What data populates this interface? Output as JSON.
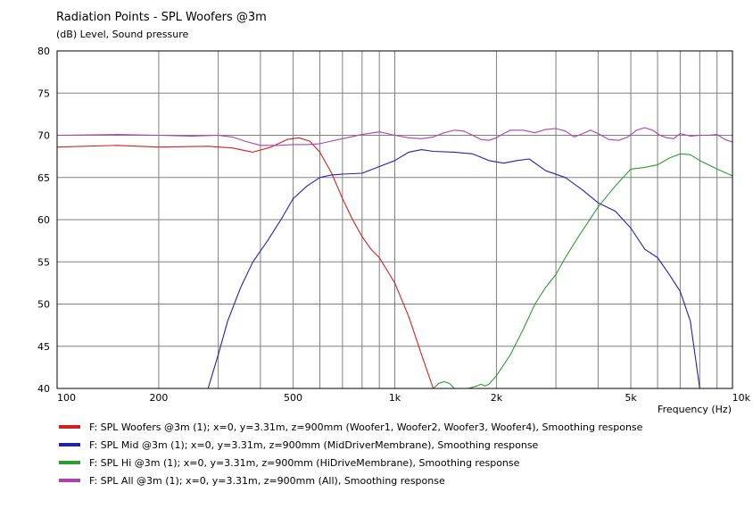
{
  "chart_data": {
    "type": "line",
    "title": "Radiation Points - SPL Woofers @3m",
    "ylabel": "(dB)  Level, Sound pressure",
    "xlabel": "Frequency  (Hz)",
    "xscale": "log",
    "xlim": [
      100,
      10000
    ],
    "ylim": [
      40,
      80
    ],
    "grid": true,
    "legend_position": "bottom",
    "y_ticks": [
      "80",
      "75",
      "70",
      "65",
      "60",
      "55",
      "50",
      "45",
      "40"
    ],
    "x_tick_labels": [
      {
        "value": 100,
        "label": "100"
      },
      {
        "value": 200,
        "label": "200"
      },
      {
        "value": 500,
        "label": "500"
      },
      {
        "value": 1000,
        "label": "1k"
      },
      {
        "value": 2000,
        "label": "2k"
      },
      {
        "value": 5000,
        "label": "5k"
      },
      {
        "value": 10000,
        "label": "10k"
      }
    ],
    "series": [
      {
        "name": "F: SPL Woofers @3m (1); x=0, y=3.31m, z=900mm  (Woofer1, Woofer2, Woofer3, Woofer4), Smoothing response",
        "color": "#cc2222",
        "x": [
          100,
          150,
          200,
          280,
          330,
          380,
          430,
          480,
          520,
          560,
          600,
          650,
          700,
          750,
          800,
          850,
          900,
          1000,
          1100,
          1200,
          1300
        ],
        "y": [
          68.6,
          68.8,
          68.6,
          68.7,
          68.5,
          68.0,
          68.6,
          69.5,
          69.7,
          69.3,
          68.0,
          65.5,
          62.5,
          60.0,
          58.0,
          56.5,
          55.5,
          52.5,
          48.5,
          44.0,
          40.0
        ]
      },
      {
        "name": "F: SPL Mid @3m (1); x=0, y=3.31m, z=900mm  (MidDriverMembrane), Smoothing response",
        "color": "#2222aa",
        "x": [
          280,
          300,
          320,
          350,
          380,
          420,
          460,
          500,
          550,
          600,
          650,
          700,
          800,
          900,
          1000,
          1100,
          1200,
          1300,
          1500,
          1700,
          1900,
          2100,
          2300,
          2500,
          2800,
          3200,
          3600,
          4000,
          4500,
          5000,
          5500,
          6000,
          6500,
          7000,
          7500,
          8000
        ],
        "y": [
          40.0,
          44.0,
          48.0,
          52.0,
          55.0,
          57.5,
          60.0,
          62.5,
          64.0,
          65.0,
          65.3,
          65.4,
          65.5,
          66.3,
          67.0,
          68.0,
          68.3,
          68.1,
          68.0,
          67.8,
          67.0,
          66.7,
          67.0,
          67.2,
          65.8,
          65.0,
          63.5,
          62.0,
          61.0,
          59.0,
          56.5,
          55.5,
          53.5,
          51.5,
          48.0,
          40.0
        ]
      },
      {
        "name": "F: SPL Hi @3m (1); x=0, y=3.31m, z=900mm  (HiDriveMembrane), Smoothing response",
        "color": "#339933",
        "x": [
          1300,
          1350,
          1400,
          1450,
          1500,
          1550,
          1650,
          1750,
          1800,
          1850,
          1900,
          2000,
          2200,
          2400,
          2600,
          2800,
          3000,
          3200,
          3500,
          4000,
          4500,
          5000,
          5500,
          6000,
          6500,
          7000,
          7500,
          8000,
          9000,
          10000
        ],
        "y": [
          40.0,
          40.6,
          40.8,
          40.6,
          40.0,
          40.0,
          40.0,
          40.3,
          40.5,
          40.3,
          40.5,
          41.5,
          44.0,
          47.0,
          50.0,
          52.0,
          53.5,
          55.5,
          58.0,
          61.5,
          64.0,
          66.0,
          66.2,
          66.5,
          67.3,
          67.8,
          67.7,
          67.0,
          66.0,
          65.2
        ]
      },
      {
        "name": "F: SPL All @3m (1); x=0, y=3.31m, z=900mm  (All), Smoothing response",
        "color": "#aa44aa",
        "x": [
          100,
          150,
          200,
          250,
          300,
          330,
          360,
          400,
          450,
          500,
          550,
          600,
          700,
          800,
          900,
          1000,
          1100,
          1200,
          1300,
          1400,
          1500,
          1600,
          1700,
          1800,
          1900,
          2000,
          2100,
          2200,
          2400,
          2600,
          2800,
          3000,
          3200,
          3400,
          3600,
          3800,
          4000,
          4300,
          4600,
          4900,
          5200,
          5500,
          5800,
          6100,
          6400,
          6700,
          7000,
          7500,
          8000,
          8500,
          9000,
          9500,
          10000
        ],
        "y": [
          70.0,
          70.1,
          70.0,
          69.9,
          70.0,
          69.8,
          69.3,
          68.8,
          68.8,
          68.9,
          68.9,
          69.0,
          69.6,
          70.1,
          70.4,
          70.0,
          69.7,
          69.6,
          69.8,
          70.3,
          70.6,
          70.5,
          70.0,
          69.5,
          69.4,
          69.7,
          70.2,
          70.6,
          70.6,
          70.3,
          70.7,
          70.8,
          70.5,
          69.8,
          70.2,
          70.6,
          70.2,
          69.5,
          69.4,
          69.8,
          70.6,
          70.9,
          70.6,
          70.0,
          69.7,
          69.6,
          70.2,
          69.9,
          70.0,
          70.0,
          70.1,
          69.5,
          69.2
        ]
      }
    ]
  }
}
